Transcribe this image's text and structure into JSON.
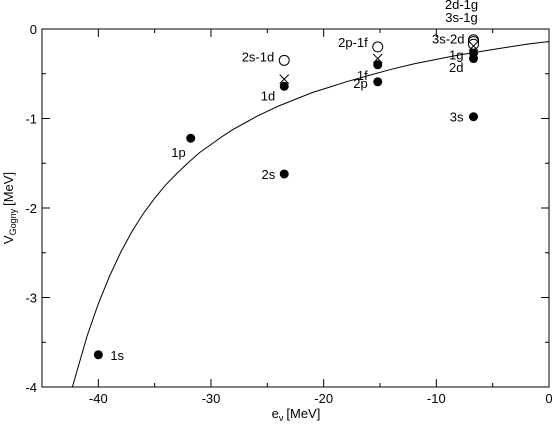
{
  "chart_data": {
    "type": "scatter",
    "xlabel": {
      "main": "e",
      "sub": "ν",
      "unit": "[MeV]"
    },
    "ylabel": {
      "main": "V",
      "sub": "Gogny",
      "unit": "[MeV]"
    },
    "xlim": [
      -45,
      0
    ],
    "ylim": [
      -4,
      0
    ],
    "xticks": [
      -40,
      -30,
      -20,
      -10,
      0
    ],
    "xtick_labels": [
      "-40",
      "-30",
      "-20",
      "-10",
      "0"
    ],
    "yticks": [
      -4,
      -3,
      -2,
      -1,
      0
    ],
    "ytick_labels": [
      "-4",
      "-3",
      "-2",
      "-1",
      "0"
    ],
    "grid": false,
    "series": [
      {
        "marker": "filled-circle",
        "points": [
          {
            "x": -40.0,
            "y": -3.64,
            "label": "1s"
          },
          {
            "x": -31.8,
            "y": -1.22,
            "label": "1p"
          },
          {
            "x": -23.5,
            "y": -1.62,
            "label": "2s"
          },
          {
            "x": -23.5,
            "y": -0.64,
            "label": "1d"
          },
          {
            "x": -15.2,
            "y": -0.4,
            "label": "1f"
          },
          {
            "x": -15.2,
            "y": -0.59,
            "label": "2p"
          },
          {
            "x": -6.7,
            "y": -0.33,
            "label": "1g"
          },
          {
            "x": -6.7,
            "y": -0.27,
            "label": "2d"
          },
          {
            "x": -6.7,
            "y": -0.98,
            "label": "3s"
          }
        ]
      },
      {
        "marker": "open-circle",
        "points": [
          {
            "x": -23.5,
            "y": -0.35,
            "label": "2s-1d"
          },
          {
            "x": -15.2,
            "y": -0.2,
            "label": "2p-1f"
          },
          {
            "x": -6.7,
            "y": -0.12,
            "label": "3s-2d"
          },
          {
            "x": -6.7,
            "y": -0.14,
            "label": ""
          },
          {
            "x": -6.7,
            "y": -0.17,
            "label": ""
          }
        ]
      },
      {
        "marker": "cross",
        "points": [
          {
            "x": -23.5,
            "y": -0.56
          },
          {
            "x": -15.2,
            "y": -0.33
          },
          {
            "x": -6.7,
            "y": -0.19
          }
        ]
      },
      {
        "type": "line",
        "x": [
          -42.3,
          -41,
          -40,
          -39,
          -38,
          -37,
          -36,
          -35,
          -34,
          -33,
          -32,
          -31,
          -30,
          -29,
          -28,
          -27,
          -26,
          -25,
          -24,
          -23,
          -22,
          -21,
          -20,
          -18,
          -16,
          -14,
          -12,
          -10,
          -8,
          -6,
          -4,
          -2,
          0
        ],
        "values": [
          -4.0,
          -3.43,
          -3.07,
          -2.76,
          -2.49,
          -2.26,
          -2.06,
          -1.89,
          -1.74,
          -1.61,
          -1.49,
          -1.38,
          -1.29,
          -1.2,
          -1.12,
          -1.05,
          -0.98,
          -0.92,
          -0.86,
          -0.81,
          -0.76,
          -0.71,
          -0.67,
          -0.59,
          -0.52,
          -0.45,
          -0.39,
          -0.34,
          -0.29,
          -0.25,
          -0.21,
          -0.17,
          -0.14
        ]
      }
    ],
    "extra_labels": [
      "2d-1g",
      "3s-1g"
    ]
  }
}
